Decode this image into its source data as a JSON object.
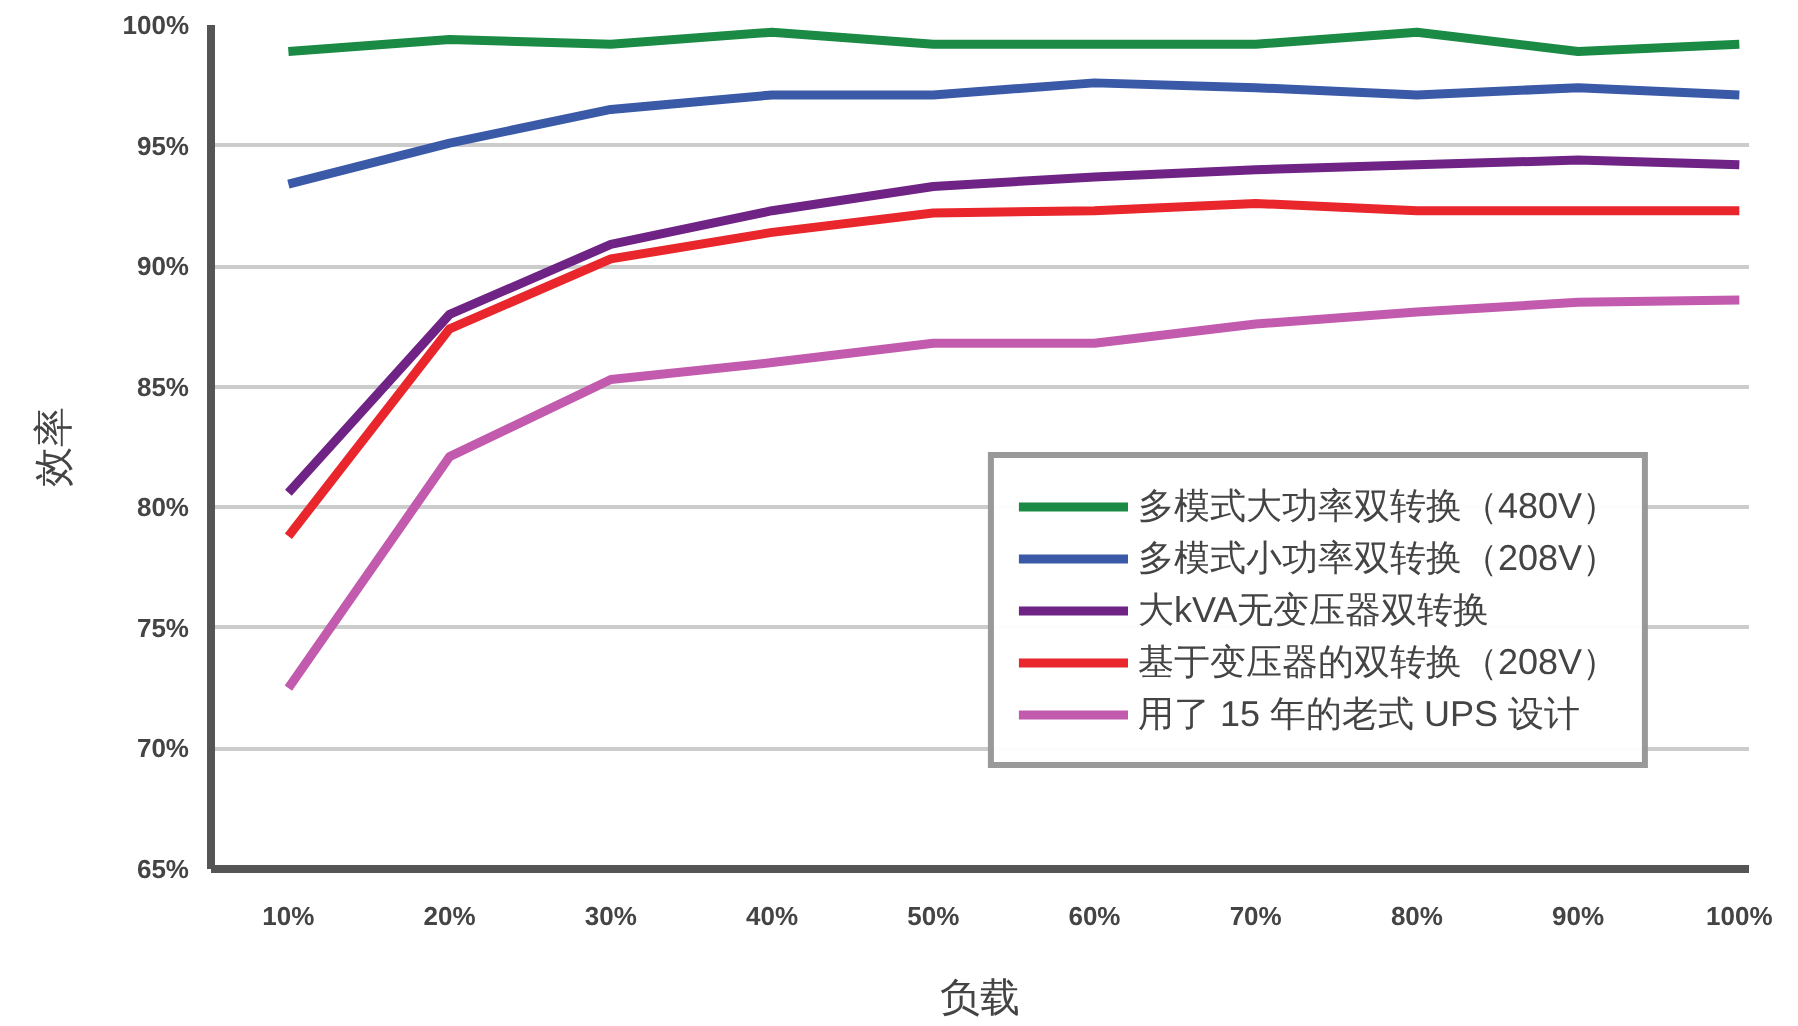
{
  "chart_data": {
    "type": "line",
    "xlabel": "负载",
    "ylabel": "效率",
    "categories": [
      "10%",
      "20%",
      "30%",
      "40%",
      "50%",
      "60%",
      "70%",
      "80%",
      "90%",
      "100%"
    ],
    "series": [
      {
        "name": "多模式大功率双转换（480V）",
        "color": "#1a8a45",
        "values": [
          98.9,
          99.4,
          99.2,
          99.7,
          99.2,
          99.2,
          99.2,
          99.7,
          98.9,
          99.2
        ]
      },
      {
        "name": "多模式小功率双转换（208V）",
        "color": "#3a5aa8",
        "values": [
          93.4,
          95.1,
          96.5,
          97.1,
          97.1,
          97.6,
          97.4,
          97.1,
          97.4,
          97.1
        ]
      },
      {
        "name": "大kVA无变压器双转换",
        "color": "#6e2385",
        "values": [
          80.6,
          88.0,
          90.9,
          92.3,
          93.3,
          93.7,
          94.0,
          94.2,
          94.4,
          94.2
        ]
      },
      {
        "name": "基于变压器的双转换（208V）",
        "color": "#e8262c",
        "values": [
          78.8,
          87.4,
          90.3,
          91.4,
          92.2,
          92.3,
          92.6,
          92.3,
          92.3,
          92.3
        ]
      },
      {
        "name": "用了 15 年的老式 UPS 设计",
        "color": "#c25aad",
        "values": [
          72.5,
          82.1,
          85.3,
          86.0,
          86.8,
          86.8,
          87.6,
          88.1,
          88.5,
          88.6
        ]
      }
    ],
    "ylim": [
      65,
      100
    ],
    "yticks": [
      {
        "value": 65,
        "label": "65%"
      },
      {
        "value": 70,
        "label": "70%"
      },
      {
        "value": 75,
        "label": "75%"
      },
      {
        "value": 80,
        "label": "80%"
      },
      {
        "value": 85,
        "label": "85%"
      },
      {
        "value": 90,
        "label": "90%"
      },
      {
        "value": 95,
        "label": "95%"
      },
      {
        "value": 100,
        "label": "100%"
      }
    ],
    "grid": "y",
    "legend": "bottom right",
    "marker": "none",
    "line_style": "solid"
  }
}
